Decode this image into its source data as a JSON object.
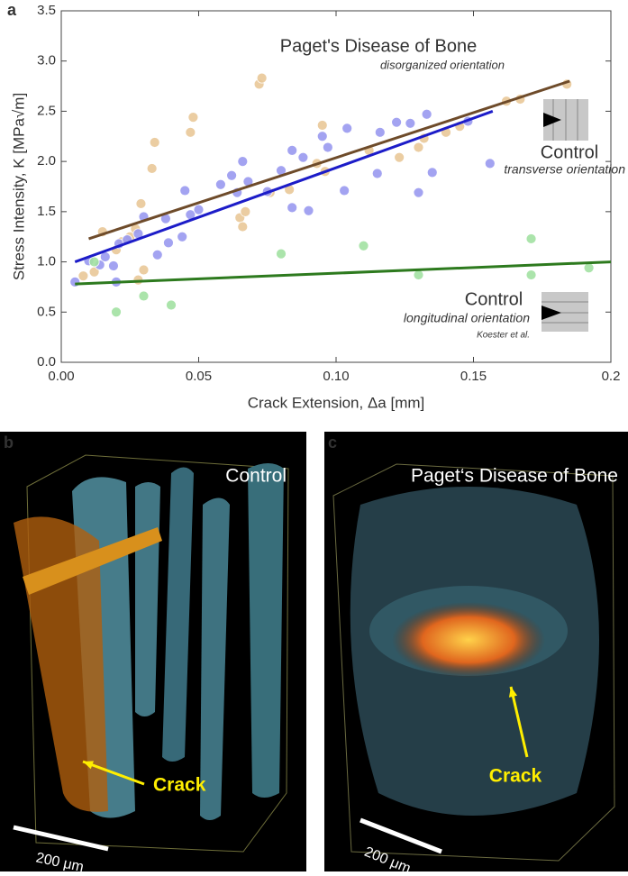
{
  "chart_data": {
    "type": "scatter",
    "panel_label": "a",
    "xlabel": "Crack Extension, Δa [mm]",
    "ylabel": "Stress Intensity, K [MPa√m]",
    "xlim": [
      0,
      0.2
    ],
    "ylim": [
      0,
      3.5
    ],
    "xticks": [
      {
        "value": 0,
        "label": "0.00"
      },
      0.05,
      {
        "value": 0.1,
        "label": "0.10"
      },
      0.15,
      0.2
    ],
    "yticks": [
      {
        "value": 0,
        "label": "0.0"
      },
      0.5,
      {
        "value": 1,
        "label": "1.0"
      },
      1.5,
      {
        "value": 2,
        "label": "2.0"
      },
      2.5,
      {
        "value": 3,
        "label": "3.0"
      },
      3.5
    ],
    "annotations": [
      "Paget's Disease of Bone",
      "disorganized orientation",
      "Control",
      "transverse orientation",
      "Control",
      "longitudinal orientation",
      "Koester et al."
    ],
    "series": [
      {
        "color": "#e9c898",
        "x": [
          0.008,
          0.012,
          0.015,
          0.02,
          0.022,
          0.025,
          0.027,
          0.028,
          0.029,
          0.03,
          0.033,
          0.034,
          0.047,
          0.048,
          0.065,
          0.066,
          0.067,
          0.072,
          0.073,
          0.076,
          0.083,
          0.093,
          0.095,
          0.096,
          0.112,
          0.123,
          0.13,
          0.132,
          0.14,
          0.145,
          0.162,
          0.167,
          0.184
        ],
        "values": [
          0.86,
          0.9,
          1.3,
          1.12,
          1.2,
          1.25,
          1.33,
          0.82,
          1.58,
          0.92,
          1.93,
          2.19,
          2.29,
          2.44,
          1.44,
          1.35,
          1.5,
          2.77,
          2.83,
          1.69,
          1.72,
          1.98,
          2.36,
          1.9,
          2.11,
          2.04,
          2.14,
          2.23,
          2.29,
          2.35,
          2.6,
          2.62,
          2.77
        ]
      },
      {
        "color": "#9a9af0",
        "x": [
          0.005,
          0.01,
          0.014,
          0.016,
          0.019,
          0.02,
          0.021,
          0.024,
          0.028,
          0.03,
          0.035,
          0.038,
          0.039,
          0.044,
          0.045,
          0.047,
          0.05,
          0.058,
          0.062,
          0.064,
          0.066,
          0.068,
          0.075,
          0.08,
          0.084,
          0.084,
          0.088,
          0.09,
          0.095,
          0.097,
          0.103,
          0.104,
          0.115,
          0.116,
          0.122,
          0.127,
          0.13,
          0.133,
          0.135,
          0.148,
          0.156
        ],
        "values": [
          0.8,
          1.01,
          0.97,
          1.05,
          0.96,
          0.8,
          1.18,
          1.22,
          1.28,
          1.45,
          1.07,
          1.43,
          1.19,
          1.25,
          1.71,
          1.47,
          1.52,
          1.77,
          1.86,
          1.69,
          2.0,
          1.8,
          1.7,
          1.91,
          2.11,
          1.54,
          2.04,
          1.51,
          2.25,
          2.14,
          1.71,
          2.33,
          1.88,
          2.29,
          2.39,
          2.38,
          1.69,
          2.47,
          1.89,
          2.4,
          1.98
        ]
      },
      {
        "color": "#a2e2a2",
        "x": [
          0.012,
          0.02,
          0.03,
          0.04,
          0.08,
          0.11,
          0.13,
          0.171,
          0.171,
          0.192
        ],
        "values": [
          1.0,
          0.5,
          0.66,
          0.57,
          1.08,
          1.16,
          0.87,
          1.23,
          0.87,
          0.94
        ]
      }
    ],
    "fits": [
      {
        "color": "#6e4b2a",
        "x": [
          0.01,
          0.185
        ],
        "values": [
          1.23,
          2.8
        ]
      },
      {
        "color": "#1c1cc8",
        "x": [
          0.005,
          0.157
        ],
        "values": [
          1.0,
          2.5
        ]
      },
      {
        "color": "#2d7a1e",
        "x": [
          0.005,
          0.2
        ],
        "values": [
          0.78,
          1.0
        ]
      }
    ]
  },
  "panels": [
    {
      "label": "b",
      "title": "Control",
      "arrow": "Crack",
      "scale": "200 μm"
    },
    {
      "label": "c",
      "title": "Paget‘s Disease of Bone",
      "arrow": "Crack",
      "scale": "200 μm"
    }
  ]
}
